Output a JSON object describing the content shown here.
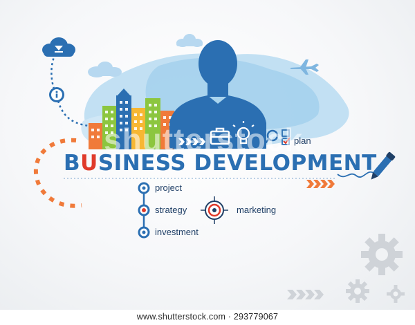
{
  "headline": {
    "first": "B",
    "red": "U",
    "rest": "SINESS DEVELOPMENT"
  },
  "watermark": "shutterstock",
  "labels": {
    "plan": "plan",
    "project": "project",
    "strategy": "strategy",
    "investment": "investment",
    "marketing": "marketing"
  },
  "footer": {
    "url": "www.shutterstock.com · 293779067"
  },
  "colors": {
    "primary_blue": "#2b6fb2",
    "accent_orange": "#f07a3a",
    "accent_red": "#e03a2a",
    "green": "#8cc63f",
    "gear_gray": "#cfd3d8"
  },
  "icons": [
    "cloud-icon",
    "info-icon",
    "person-icon",
    "briefcase-icon",
    "lightbulb-icon",
    "magnifier-icon",
    "checkbox-icon",
    "pen-icon",
    "airplane-icon",
    "target-icon",
    "gear-icon"
  ]
}
